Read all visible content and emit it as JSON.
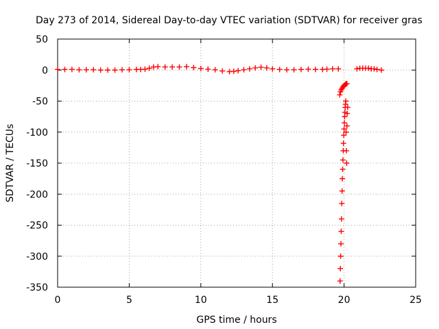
{
  "chart_data": {
    "type": "scatter",
    "title": "Day 273 of 2014, Sidereal Day-to-day VTEC variation (SDTVAR) for receiver gras",
    "xlabel": "GPS time / hours",
    "ylabel": "SDTVAR / TECUs",
    "xlim": [
      0,
      25
    ],
    "ylim": [
      -350,
      50
    ],
    "xticks": [
      0,
      5,
      10,
      15,
      20,
      25
    ],
    "yticks": [
      50,
      0,
      -50,
      -100,
      -150,
      -200,
      -250,
      -300,
      -350
    ],
    "grid": true,
    "marker": "+",
    "colors": {
      "series": "#ff0000",
      "axis": "#000000",
      "grid": "#a0a0a0"
    },
    "series": [
      {
        "name": "SDTVAR",
        "description_points": "sampled points of the dense marker trace",
        "x": [
          0.0,
          0.5,
          1.0,
          1.5,
          2.0,
          2.5,
          3.0,
          3.5,
          4.0,
          4.5,
          5.0,
          5.5,
          5.8,
          6.1,
          6.4,
          6.7,
          7.0,
          7.5,
          8.0,
          8.5,
          9.0,
          9.5,
          10.0,
          10.5,
          11.0,
          11.5,
          12.0,
          12.3,
          12.6,
          13.0,
          13.4,
          13.8,
          14.2,
          14.6,
          15.0,
          15.5,
          16.0,
          16.5,
          17.0,
          17.5,
          18.0,
          18.5,
          18.8,
          19.2,
          19.6,
          19.7,
          19.75,
          19.8,
          19.85,
          19.9,
          19.95,
          20.0,
          20.05,
          20.1,
          20.15,
          20.2,
          19.72,
          19.74,
          19.76,
          19.78,
          19.8,
          19.82,
          19.84,
          19.86,
          19.88,
          19.9,
          19.92,
          19.94,
          19.96,
          19.98,
          20.0,
          20.02,
          20.04,
          20.06,
          20.08,
          20.1,
          20.12,
          20.14,
          20.16,
          20.18,
          20.2,
          20.22,
          20.25,
          20.9,
          21.1,
          21.3,
          21.5,
          21.7,
          21.9,
          22.1,
          22.3,
          22.6
        ],
        "y": [
          1,
          1,
          1,
          0.5,
          0.5,
          0.5,
          0,
          0,
          0,
          0.5,
          0.5,
          1,
          1,
          1.5,
          3,
          5,
          5.5,
          5,
          5,
          5,
          5.5,
          4,
          2.5,
          1.5,
          0.5,
          -1.5,
          -2.5,
          -2,
          -1,
          0.5,
          2,
          3.5,
          4.5,
          3.5,
          2,
          1,
          0.5,
          0.5,
          1,
          1.5,
          1,
          1,
          1.5,
          2,
          2,
          -40,
          -35,
          -32,
          -30,
          -28,
          -26,
          -25,
          -24,
          -23,
          -22,
          -22,
          -340,
          -320,
          -300,
          -280,
          -260,
          -240,
          -215,
          -195,
          -175,
          -160,
          -145,
          -130,
          -118,
          -105,
          -95,
          -85,
          -75,
          -68,
          -60,
          -55,
          -50,
          -100,
          -130,
          -150,
          -90,
          -70,
          -60,
          2,
          3,
          3,
          3,
          3,
          2,
          2,
          1,
          0
        ]
      }
    ]
  }
}
